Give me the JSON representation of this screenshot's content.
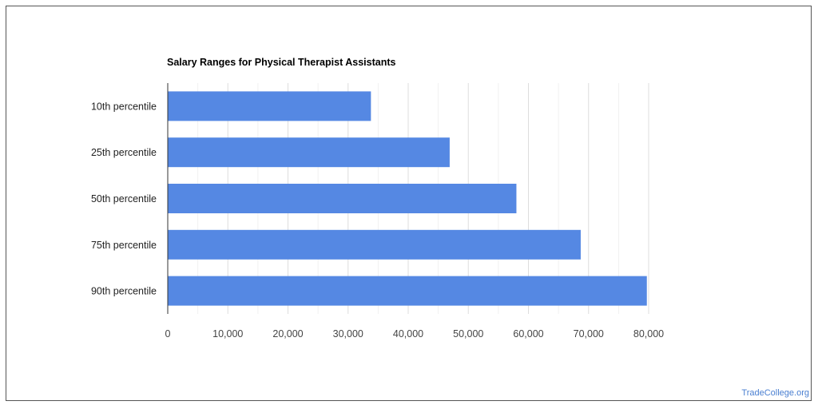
{
  "chart_data": {
    "type": "bar",
    "orientation": "horizontal",
    "title": "Salary Ranges for Physical Therapist Assistants",
    "categories": [
      "10th percentile",
      "25th percentile",
      "50th percentile",
      "75th percentile",
      "90th percentile"
    ],
    "values": [
      33800,
      46900,
      58000,
      68700,
      79700
    ],
    "xlim": [
      0,
      80000
    ],
    "xticks": [
      "0",
      "10,000",
      "20,000",
      "30,000",
      "40,000",
      "50,000",
      "60,000",
      "70,000",
      "80,000"
    ],
    "xlabel": "",
    "ylabel": "",
    "grid": true,
    "legend": "none",
    "bar_color": "#5588e3"
  },
  "footer": {
    "credit": "TradeCollege.org"
  }
}
